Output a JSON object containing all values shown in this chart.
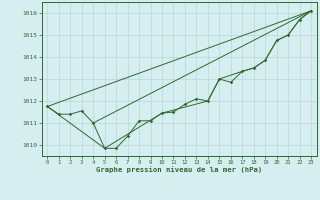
{
  "title": "Graphe pression niveau de la mer (hPa)",
  "background_color": "#d6eef0",
  "grid_color": "#b8d8d8",
  "line_color": "#2d6a2d",
  "xlim": [
    -0.5,
    23.5
  ],
  "ylim": [
    1009.5,
    1016.5
  ],
  "yticks": [
    1010,
    1011,
    1012,
    1013,
    1014,
    1015,
    1016
  ],
  "xticks": [
    0,
    1,
    2,
    3,
    4,
    5,
    6,
    7,
    8,
    9,
    10,
    11,
    12,
    13,
    14,
    15,
    16,
    17,
    18,
    19,
    20,
    21,
    22,
    23
  ],
  "series_main_x": [
    0,
    1,
    2,
    3,
    4,
    5,
    6,
    7,
    8,
    9,
    10,
    11,
    12,
    13,
    14,
    15,
    16,
    17,
    18,
    19,
    20,
    21,
    22,
    23
  ],
  "series_main_y": [
    1011.75,
    1011.4,
    1011.4,
    1011.55,
    1011.0,
    1009.85,
    1009.85,
    1010.4,
    1011.1,
    1011.1,
    1011.45,
    1011.5,
    1011.85,
    1012.1,
    1012.0,
    1013.0,
    1012.85,
    1013.35,
    1013.5,
    1013.85,
    1014.75,
    1015.0,
    1015.7,
    1016.1
  ],
  "line1_x": [
    0,
    23
  ],
  "line1_y": [
    1011.75,
    1016.1
  ],
  "line2_x": [
    4,
    23
  ],
  "line2_y": [
    1011.0,
    1016.1
  ],
  "smooth_x": [
    0,
    5,
    10,
    14,
    15,
    17,
    18,
    19,
    20,
    21,
    22,
    23
  ],
  "smooth_y": [
    1011.75,
    1009.85,
    1011.45,
    1012.0,
    1013.0,
    1013.35,
    1013.5,
    1013.85,
    1014.75,
    1015.0,
    1015.7,
    1016.1
  ]
}
